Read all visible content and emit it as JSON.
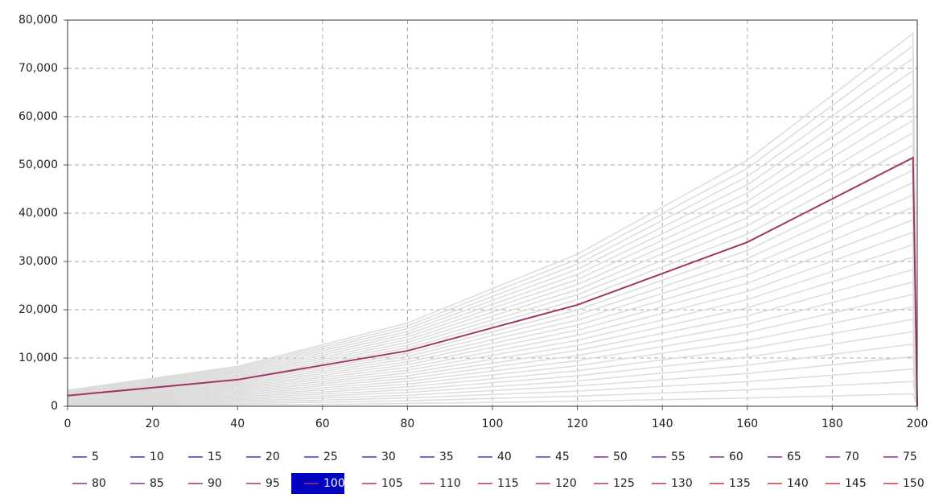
{
  "chart_data": {
    "type": "line",
    "x": [
      0,
      40,
      80,
      120,
      160,
      199,
      200
    ],
    "xlim": [
      0,
      200
    ],
    "xticks": [
      0,
      20,
      40,
      60,
      80,
      100,
      120,
      140,
      160,
      180,
      200
    ],
    "ylim": [
      0,
      80000
    ],
    "yticks": [
      0,
      {
        "value": 10000,
        "label": "10,000"
      },
      {
        "value": 20000,
        "label": "20,000"
      },
      {
        "value": 30000,
        "label": "30,000"
      },
      {
        "value": 40000,
        "label": "40,000"
      },
      {
        "value": 50000,
        "label": "50,000"
      },
      {
        "value": 60000,
        "label": "60,000"
      },
      {
        "value": 70000,
        "label": "70,000"
      },
      {
        "value": 80000,
        "label": "80,000"
      }
    ],
    "grid": true,
    "dimmed_color": "#dcdcdc",
    "legend": "bottom",
    "series": [
      {
        "name": "5",
        "color": "#3333cc",
        "values": [
          111,
          276,
          574,
          1051,
          1700,
          2575,
          0
        ]
      },
      {
        "name": "10",
        "color": "#3933c7",
        "values": [
          221,
          551,
          1149,
          2101,
          3399,
          5150,
          0
        ]
      },
      {
        "name": "15",
        "color": "#3f33c1",
        "values": [
          332,
          827,
          1723,
          3152,
          5099,
          7725,
          0
        ]
      },
      {
        "name": "20",
        "color": "#4533bc",
        "values": [
          443,
          1102,
          2297,
          4202,
          6798,
          10300,
          0
        ]
      },
      {
        "name": "25",
        "color": "#4a33b7",
        "values": [
          554,
          1378,
          2872,
          5253,
          8498,
          12875,
          0
        ]
      },
      {
        "name": "30",
        "color": "#5033b2",
        "values": [
          664,
          1654,
          3446,
          6304,
          10197,
          15450,
          0
        ]
      },
      {
        "name": "35",
        "color": "#5633ac",
        "values": [
          775,
          1929,
          4020,
          7354,
          11897,
          18025,
          0
        ]
      },
      {
        "name": "40",
        "color": "#5c33a7",
        "values": [
          886,
          2205,
          4594,
          8405,
          13596,
          20600,
          0
        ]
      },
      {
        "name": "45",
        "color": "#6233a2",
        "values": [
          996,
          2480,
          5169,
          9455,
          15296,
          23175,
          0
        ]
      },
      {
        "name": "50",
        "color": "#68339d",
        "values": [
          1107,
          2756,
          5743,
          10506,
          16995,
          25750,
          0
        ]
      },
      {
        "name": "55",
        "color": "#6e3397",
        "values": [
          1218,
          3032,
          6317,
          11557,
          18695,
          28325,
          0
        ]
      },
      {
        "name": "60",
        "color": "#733392",
        "values": [
          1328,
          3307,
          6892,
          12607,
          20394,
          30900,
          0
        ]
      },
      {
        "name": "65",
        "color": "#79338d",
        "values": [
          1439,
          3583,
          7466,
          13658,
          22094,
          33475,
          0
        ]
      },
      {
        "name": "70",
        "color": "#7f3387",
        "values": [
          1550,
          3858,
          8040,
          14708,
          23793,
          36050,
          0
        ]
      },
      {
        "name": "75",
        "color": "#853382",
        "values": [
          1661,
          4134,
          8615,
          15759,
          25493,
          38625,
          0
        ]
      },
      {
        "name": "80",
        "color": "#8b337d",
        "values": [
          1771,
          4410,
          9189,
          16810,
          27192,
          41200,
          0
        ]
      },
      {
        "name": "85",
        "color": "#913378",
        "values": [
          1882,
          4685,
          9763,
          17860,
          28892,
          43775,
          0
        ]
      },
      {
        "name": "90",
        "color": "#973372",
        "values": [
          1993,
          4961,
          10337,
          18911,
          30591,
          46350,
          0
        ]
      },
      {
        "name": "95",
        "color": "#9d336d",
        "values": [
          2103,
          5236,
          10912,
          19961,
          32291,
          48925,
          0
        ]
      },
      {
        "name": "100",
        "color": "#a23368",
        "highlighted": true,
        "values": [
          2214,
          5512,
          11486,
          21012,
          33990,
          51500,
          0
        ]
      },
      {
        "name": "105",
        "color": "#a83362",
        "values": [
          2325,
          5788,
          12060,
          22063,
          35690,
          54075,
          0
        ]
      },
      {
        "name": "110",
        "color": "#ae335d",
        "values": [
          2435,
          6063,
          12635,
          23113,
          37389,
          56650,
          0
        ]
      },
      {
        "name": "115",
        "color": "#b43358",
        "values": [
          2546,
          6339,
          13209,
          24164,
          39089,
          59225,
          0
        ]
      },
      {
        "name": "120",
        "color": "#ba3353",
        "values": [
          2657,
          6614,
          13783,
          25214,
          40788,
          61800,
          0
        ]
      },
      {
        "name": "125",
        "color": "#c0334d",
        "values": [
          2768,
          6890,
          14358,
          26265,
          42488,
          64375,
          0
        ]
      },
      {
        "name": "130",
        "color": "#c53348",
        "values": [
          2878,
          7166,
          14932,
          27316,
          44187,
          66950,
          0
        ]
      },
      {
        "name": "135",
        "color": "#cb3343",
        "values": [
          2989,
          7441,
          15506,
          28366,
          45887,
          69525,
          0
        ]
      },
      {
        "name": "140",
        "color": "#d1333d",
        "values": [
          3100,
          7717,
          16080,
          29417,
          47586,
          72100,
          0
        ]
      },
      {
        "name": "145",
        "color": "#d73338",
        "values": [
          3210,
          7992,
          16655,
          30467,
          49286,
          74675,
          0
        ]
      },
      {
        "name": "150",
        "color": "#dd3333",
        "values": [
          3321,
          8268,
          17229,
          31518,
          50985,
          77250,
          0
        ]
      }
    ]
  }
}
